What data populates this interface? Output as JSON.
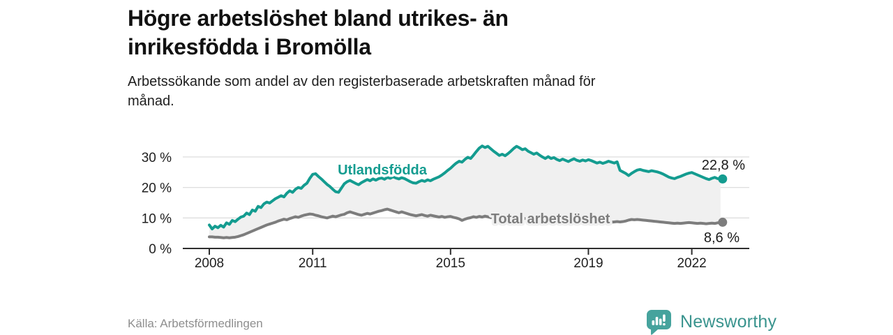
{
  "header": {
    "title_lines": [
      "Högre arbetslöshet bland utrikes- än",
      "inrikesfödda i Bromölla"
    ],
    "subtitle_lines": [
      "Arbetssökande som andel av den registerbaserade arbetskraften månad för",
      "månad."
    ]
  },
  "footer": {
    "source": "Källa: Arbetsförmedlingen",
    "brand": "Newsworthy",
    "brand_color": "#3a948e",
    "brand_icon": "speech-bubble-bar-chart-icon"
  },
  "chart_data": {
    "type": "line",
    "title": "Högre arbetslöshet bland utrikes- än inrikesfödda i Bromölla",
    "subtitle": "Arbetssökande som andel av den registerbaserade arbetskraften månad för månad.",
    "x_unit": "month",
    "x_start": "2008-01",
    "x_end": "2022-11",
    "x_ticks": [
      2008,
      2011,
      2015,
      2019,
      2022
    ],
    "y_ticks": [
      0,
      10,
      20,
      30
    ],
    "y_tick_suffix": " %",
    "ylim": [
      0,
      36
    ],
    "grid": "horizontal",
    "legend_position": "inline-labels",
    "band_fill_between_series": true,
    "band_color": "#f0f0f0",
    "axis_color": "#2e2e2e",
    "grid_color": "#dedede",
    "series": [
      {
        "name": "Utlandsfödda",
        "color": "#149c90",
        "end_value_label": "22,8 %",
        "values": [
          7.7,
          6.4,
          7.3,
          6.8,
          7.6,
          7.0,
          8.4,
          7.9,
          9.2,
          8.8,
          9.6,
          10.3,
          10.6,
          11.6,
          11.1,
          12.6,
          12.2,
          13.8,
          13.4,
          14.6,
          15.2,
          14.9,
          15.6,
          16.3,
          16.8,
          17.3,
          16.9,
          18.1,
          18.9,
          18.4,
          19.4,
          20.0,
          19.7,
          20.7,
          21.4,
          23.0,
          24.3,
          24.5,
          23.6,
          22.8,
          21.9,
          21.0,
          20.3,
          19.4,
          18.6,
          18.4,
          19.8,
          21.2,
          21.9,
          22.3,
          21.8,
          21.3,
          20.9,
          21.6,
          22.1,
          22.6,
          22.2,
          22.8,
          22.4,
          22.9,
          23.1,
          22.7,
          23.3,
          23.0,
          23.5,
          23.1,
          22.8,
          23.2,
          22.9,
          22.4,
          21.9,
          21.5,
          21.4,
          21.9,
          22.3,
          22.0,
          22.5,
          22.2,
          22.7,
          23.1,
          23.5,
          24.1,
          24.8,
          25.6,
          26.3,
          27.2,
          28.0,
          28.6,
          28.3,
          29.2,
          29.9,
          29.5,
          30.6,
          31.8,
          32.9,
          33.6,
          33.1,
          33.5,
          32.7,
          31.9,
          31.2,
          30.5,
          30.9,
          30.4,
          31.1,
          31.9,
          32.8,
          33.5,
          33.0,
          32.4,
          32.7,
          31.9,
          31.4,
          30.9,
          31.3,
          30.6,
          30.0,
          29.5,
          30.1,
          29.5,
          29.8,
          29.2,
          28.8,
          29.3,
          28.9,
          28.5,
          29.0,
          29.4,
          28.9,
          28.6,
          29.0,
          28.7,
          29.1,
          28.8,
          28.4,
          28.0,
          28.3,
          27.9,
          28.2,
          28.6,
          28.3,
          28.0,
          28.4,
          25.6,
          25.1,
          24.6,
          23.9,
          24.6,
          25.2,
          25.7,
          25.9,
          25.6,
          25.4,
          25.2,
          25.5,
          25.3,
          25.1,
          24.8,
          24.4,
          23.9,
          23.4,
          23.1,
          22.9,
          23.3,
          23.6,
          24.0,
          24.4,
          24.7,
          24.9,
          24.5,
          24.1,
          23.7,
          23.3,
          22.9,
          22.6,
          23.0,
          23.3,
          22.9,
          22.8
        ]
      },
      {
        "name": "Total arbetslöshet",
        "color": "#7d7d7d",
        "end_value_label": "8,6 %",
        "values": [
          3.8,
          3.8,
          3.7,
          3.7,
          3.6,
          3.5,
          3.6,
          3.5,
          3.6,
          3.7,
          3.9,
          4.2,
          4.5,
          4.9,
          5.3,
          5.7,
          6.1,
          6.5,
          6.9,
          7.3,
          7.7,
          8.0,
          8.3,
          8.6,
          9.0,
          9.3,
          9.6,
          9.4,
          9.8,
          10.1,
          10.4,
          10.2,
          10.6,
          10.9,
          11.1,
          11.3,
          11.2,
          10.9,
          10.7,
          10.4,
          10.2,
          10.0,
          10.3,
          10.6,
          10.4,
          10.7,
          11.0,
          11.2,
          11.7,
          12.0,
          11.7,
          11.4,
          11.1,
          10.9,
          11.2,
          11.5,
          11.3,
          11.6,
          11.9,
          12.2,
          12.4,
          12.7,
          12.9,
          12.6,
          12.3,
          12.0,
          11.7,
          12.0,
          11.7,
          11.4,
          11.1,
          10.9,
          10.7,
          10.9,
          11.1,
          10.8,
          10.6,
          10.9,
          10.7,
          10.5,
          10.3,
          10.5,
          10.2,
          10.4,
          10.5,
          10.2,
          10.0,
          9.7,
          9.2,
          9.6,
          9.9,
          10.1,
          10.4,
          10.2,
          10.5,
          10.3,
          10.6,
          10.4,
          10.1,
          10.3,
          10.0,
          9.8,
          10.1,
          10.3,
          10.0,
          10.2,
          10.4,
          10.1,
          10.3,
          10.0,
          9.8,
          10.0,
          9.7,
          9.5,
          9.8,
          9.6,
          9.4,
          9.6,
          9.3,
          9.5,
          9.3,
          9.1,
          9.3,
          9.0,
          8.8,
          9.0,
          9.2,
          8.9,
          8.7,
          8.9,
          9.1,
          8.8,
          8.9,
          8.7,
          8.8,
          8.6,
          8.7,
          8.9,
          8.7,
          8.8,
          8.6,
          8.7,
          8.8,
          8.7,
          8.8,
          9.0,
          9.3,
          9.5,
          9.4,
          9.5,
          9.4,
          9.3,
          9.2,
          9.1,
          9.0,
          8.9,
          8.8,
          8.7,
          8.6,
          8.5,
          8.4,
          8.3,
          8.2,
          8.3,
          8.2,
          8.3,
          8.4,
          8.5,
          8.4,
          8.3,
          8.2,
          8.3,
          8.2,
          8.1,
          8.2,
          8.3,
          8.2,
          8.4,
          8.6
        ]
      }
    ]
  }
}
